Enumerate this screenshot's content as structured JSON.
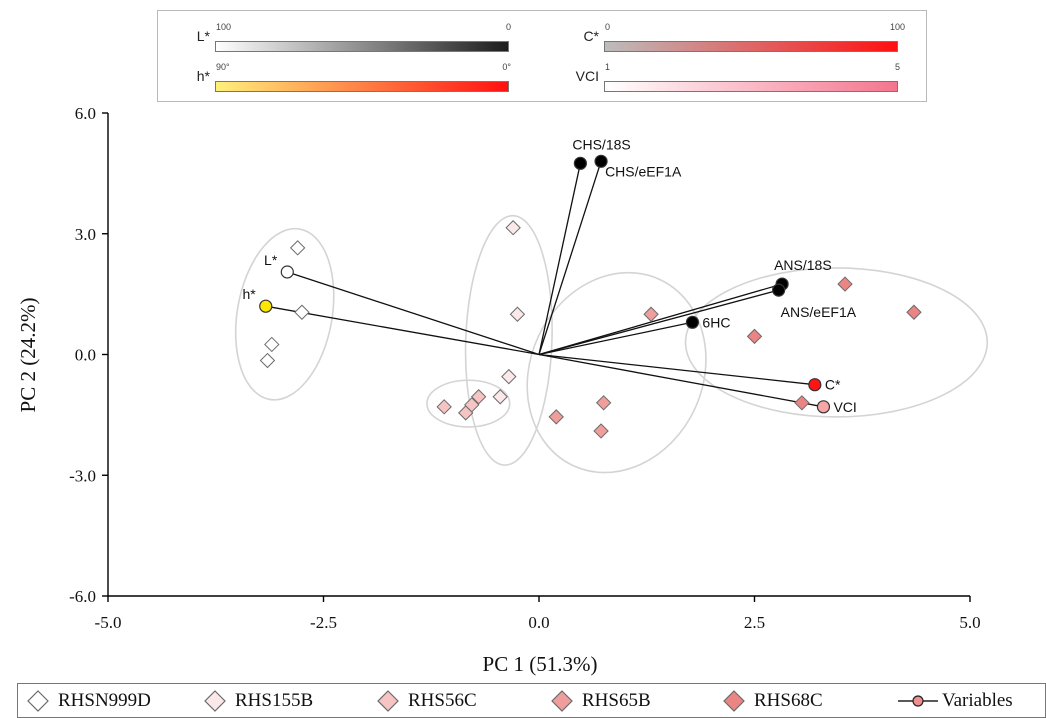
{
  "gradient_legend": [
    {
      "name": "L*",
      "min": "100",
      "max": "0",
      "from": "#ffffff",
      "to": "#1c1c1c"
    },
    {
      "name": "C*",
      "min": "0",
      "max": "100",
      "from": "#bdbdbd",
      "to": "#ff1010"
    },
    {
      "name": "h*",
      "min": "90°",
      "max": "0°",
      "from": "#fff07a",
      "to": "#ff1010"
    },
    {
      "name": "VCI",
      "min": "1",
      "max": "5",
      "from": "#ffffff",
      "to": "#f4758e"
    }
  ],
  "bottom_legend": [
    {
      "label": "RHSN999D",
      "fill": "#ffffff"
    },
    {
      "label": "RHS155B",
      "fill": "#fbe9e9"
    },
    {
      "label": "RHS56C",
      "fill": "#f6c4c2"
    },
    {
      "label": "RHS65B",
      "fill": "#ef9e9c"
    },
    {
      "label": "RHS68C",
      "fill": "#ea8584"
    },
    {
      "label": "Variables",
      "fill": "#f08f8f"
    }
  ],
  "chart_data": {
    "type": "scatter",
    "xlabel": "PC 1 (51.3%)",
    "ylabel": "PC 2 (24.2%)",
    "xlim": [
      -5.0,
      5.0
    ],
    "ylim": [
      -6.0,
      6.0
    ],
    "x_ticks": [
      "-5.0",
      "-2.5",
      "0.0",
      "2.5",
      "5.0"
    ],
    "y_ticks": [
      "6.0",
      "3.0",
      "0.0",
      "-3.0",
      "-6.0"
    ],
    "grid": false,
    "colors": {
      "RHSN999D": "#ffffff",
      "RHS155B": "#fbe9e9",
      "RHS56C": "#f6c4c2",
      "RHS65B": "#ef9e9c",
      "RHS68C": "#ea8584",
      "ellipse": "#d4d4d4",
      "marker_stroke": "#6b6b6b"
    },
    "series": [
      {
        "name": "RHSN999D",
        "points": [
          [
            -2.8,
            2.65
          ],
          [
            -2.75,
            1.05
          ],
          [
            -3.1,
            0.25
          ],
          [
            -3.15,
            -0.15
          ]
        ]
      },
      {
        "name": "RHS155B",
        "points": [
          [
            -0.3,
            3.15
          ],
          [
            -0.25,
            1.0
          ],
          [
            -0.35,
            -0.55
          ],
          [
            -0.45,
            -1.05
          ]
        ]
      },
      {
        "name": "RHS56C",
        "points": [
          [
            -1.1,
            -1.3
          ],
          [
            -0.85,
            -1.45
          ],
          [
            -0.78,
            -1.25
          ],
          [
            -0.7,
            -1.05
          ]
        ]
      },
      {
        "name": "RHS65B",
        "points": [
          [
            1.3,
            1.0
          ],
          [
            0.75,
            -1.2
          ],
          [
            0.2,
            -1.55
          ],
          [
            0.72,
            -1.9
          ]
        ]
      },
      {
        "name": "RHS68C",
        "points": [
          [
            3.55,
            1.75
          ],
          [
            4.35,
            1.05
          ],
          [
            2.5,
            0.45
          ],
          [
            3.05,
            -1.2
          ]
        ]
      }
    ],
    "ellipses": [
      {
        "cx": -2.95,
        "cy": 1.0,
        "rx": 0.55,
        "ry": 2.15,
        "angle": 10
      },
      {
        "cx": -0.35,
        "cy": 0.35,
        "rx": 0.5,
        "ry": 3.1,
        "angle": 2
      },
      {
        "cx": -0.82,
        "cy": -1.22,
        "rx": 0.48,
        "ry": 0.58,
        "angle": 0
      },
      {
        "cx": 0.9,
        "cy": -0.45,
        "rx": 1.0,
        "ry": 2.55,
        "angle": 25
      },
      {
        "cx": 3.45,
        "cy": 0.3,
        "rx": 1.75,
        "ry": 1.85,
        "angle": 0
      }
    ],
    "variables": [
      {
        "label": "CHS/18S",
        "x": 0.48,
        "y": 4.75,
        "fill": "#000000",
        "label_pos": "above"
      },
      {
        "label": "CHS/eEF1A",
        "x": 0.72,
        "y": 4.8,
        "fill": "#000000",
        "label_pos": "right-below"
      },
      {
        "label": "L*",
        "x": -2.92,
        "y": 2.05,
        "fill": "#ffffff",
        "label_pos": "left-above"
      },
      {
        "label": "h*",
        "x": -3.17,
        "y": 1.2,
        "fill": "#ffe600",
        "label_pos": "left-above"
      },
      {
        "label": "ANS/18S",
        "x": 2.82,
        "y": 1.75,
        "fill": "#000000",
        "label_pos": "above"
      },
      {
        "label": "ANS/eEF1A",
        "x": 2.78,
        "y": 1.6,
        "fill": "#000000",
        "label_pos": "below-right"
      },
      {
        "label": "6HC",
        "x": 1.78,
        "y": 0.8,
        "fill": "#000000",
        "label_pos": "right"
      },
      {
        "label": "C*",
        "x": 3.2,
        "y": -0.75,
        "fill": "#ff1414",
        "label_pos": "right"
      },
      {
        "label": "VCI",
        "x": 3.3,
        "y": -1.3,
        "fill": "#f7a6a6",
        "label_pos": "right"
      }
    ]
  }
}
